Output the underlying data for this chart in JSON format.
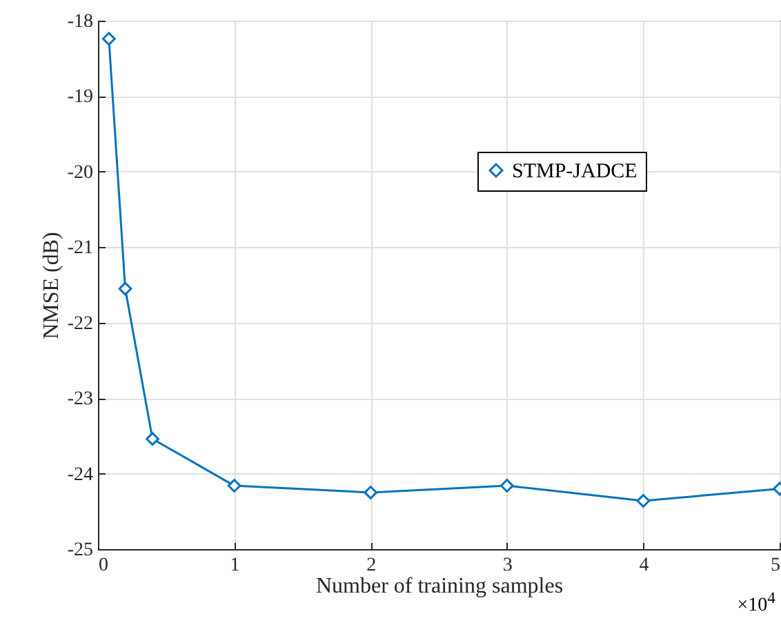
{
  "chart_data": {
    "type": "line",
    "xlabel": "Number of training samples",
    "ylabel": "NMSE (dB)",
    "x": [
      0.08,
      0.2,
      0.4,
      1,
      2,
      3,
      4,
      5
    ],
    "series": [
      {
        "name": "STMP-JADCE",
        "color": "#0072bd",
        "values": [
          -18.24,
          -21.55,
          -23.54,
          -24.16,
          -24.25,
          -24.16,
          -24.36,
          -24.2
        ]
      }
    ],
    "xlim": [
      0,
      5
    ],
    "xticks": [
      0,
      1,
      2,
      3,
      4,
      5
    ],
    "ylim": [
      -25,
      -18
    ],
    "yticks": [
      -25,
      -24,
      -23,
      -22,
      -21,
      -20,
      -19,
      -18
    ],
    "annotations": [
      "×10$^{4}$"
    ],
    "grid": true,
    "legend": "top right",
    "marker": "diamond",
    "line_style": "solid"
  }
}
